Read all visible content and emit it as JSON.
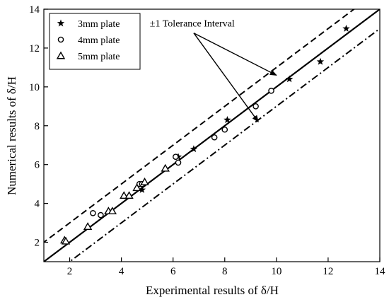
{
  "chart_data": {
    "type": "scatter",
    "xlabel": "Experimental results of δ/H",
    "ylabel": "Numerical results of δ/H",
    "xlim": [
      1,
      14
    ],
    "ylim": [
      1,
      14
    ],
    "xticks": [
      2,
      4,
      6,
      8,
      10,
      12,
      14
    ],
    "yticks": [
      2,
      4,
      6,
      8,
      10,
      12,
      14
    ],
    "grid": false,
    "legend_position": "top-left",
    "series": [
      {
        "name": "3mm plate",
        "marker": "star",
        "points": [
          [
            4.8,
            4.7
          ],
          [
            6.2,
            6.4
          ],
          [
            6.8,
            6.8
          ],
          [
            8.1,
            8.3
          ],
          [
            10.5,
            10.4
          ],
          [
            11.7,
            11.3
          ],
          [
            12.7,
            13.0
          ]
        ]
      },
      {
        "name": "4mm plate",
        "marker": "circle",
        "points": [
          [
            2.9,
            3.5
          ],
          [
            3.2,
            3.4
          ],
          [
            4.7,
            5.0
          ],
          [
            4.8,
            5.0
          ],
          [
            6.1,
            6.4
          ],
          [
            6.2,
            6.1
          ],
          [
            7.6,
            7.4
          ],
          [
            8.0,
            7.8
          ],
          [
            9.8,
            9.8
          ],
          [
            9.2,
            9.0
          ]
        ]
      },
      {
        "name": "5mm plate",
        "marker": "triangle",
        "points": [
          [
            1.8,
            2.1
          ],
          [
            1.85,
            2.05
          ],
          [
            2.7,
            2.8
          ],
          [
            3.5,
            3.6
          ],
          [
            3.65,
            3.6
          ],
          [
            4.1,
            4.4
          ],
          [
            4.3,
            4.4
          ],
          [
            4.6,
            4.8
          ],
          [
            4.9,
            5.1
          ],
          [
            5.7,
            5.8
          ]
        ]
      }
    ],
    "lines": [
      {
        "name": "y=x",
        "style": "solid",
        "offset": 0
      },
      {
        "name": "+1",
        "style": "dashed",
        "offset": 1
      },
      {
        "name": "-1",
        "style": "dashdot",
        "offset": -1
      }
    ],
    "annotation": {
      "text": "±1 Tolerance Interval",
      "anchor": [
        5.1,
        13.1
      ],
      "arrow_targets": [
        [
          10.0,
          10.6
        ],
        [
          9.3,
          8.2
        ]
      ]
    }
  }
}
